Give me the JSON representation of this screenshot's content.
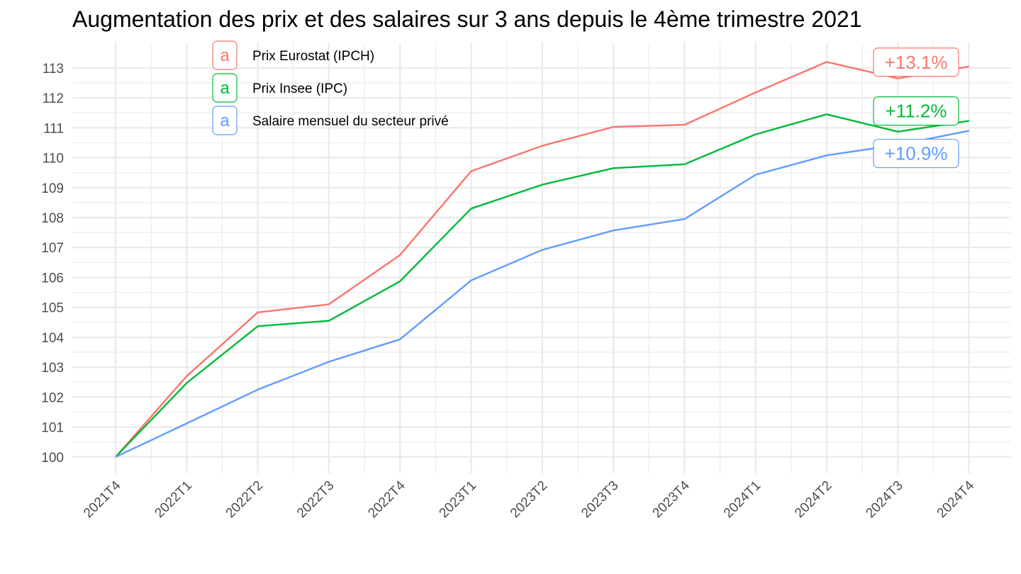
{
  "chart_data": {
    "type": "line",
    "title": "Augmentation des prix et des salaires sur 3 ans depuis le 4ème trimestre 2021",
    "xlabel": "",
    "ylabel": "",
    "categories": [
      "2021T4",
      "2022T1",
      "2022T2",
      "2022T3",
      "2022T4",
      "2023T1",
      "2023T2",
      "2023T3",
      "2023T4",
      "2024T1",
      "2024T2",
      "2024T3",
      "2024T4"
    ],
    "yticks": [
      "100",
      "101",
      "102",
      "103",
      "104",
      "105",
      "106",
      "107",
      "108",
      "109",
      "110",
      "111",
      "112",
      "113"
    ],
    "ylim": [
      99.45,
      113.85
    ],
    "grid": true,
    "legend_position": "top-left",
    "legend_key_glyph": "a",
    "series": [
      {
        "name": "Prix Eurostat (IPCH)",
        "color": "#F8766D",
        "values": [
          100,
          102.7,
          104.83,
          105.1,
          106.75,
          109.55,
          110.4,
          111.03,
          111.1,
          112.18,
          113.2,
          112.65,
          113.05
        ],
        "end_label": "+13.1%"
      },
      {
        "name": "Prix Insee (IPC)",
        "color": "#00BA38",
        "values": [
          100,
          102.47,
          104.37,
          104.55,
          105.87,
          108.3,
          109.1,
          109.65,
          109.78,
          110.78,
          111.45,
          110.87,
          111.23
        ],
        "end_label": "+11.2%"
      },
      {
        "name": "Salaire mensuel du secteur privé",
        "color": "#619CFF",
        "values": [
          100,
          101.12,
          102.25,
          103.18,
          103.93,
          105.9,
          106.92,
          107.57,
          107.95,
          109.43,
          110.08,
          110.43,
          110.9
        ],
        "end_label": "+10.9%"
      }
    ]
  }
}
